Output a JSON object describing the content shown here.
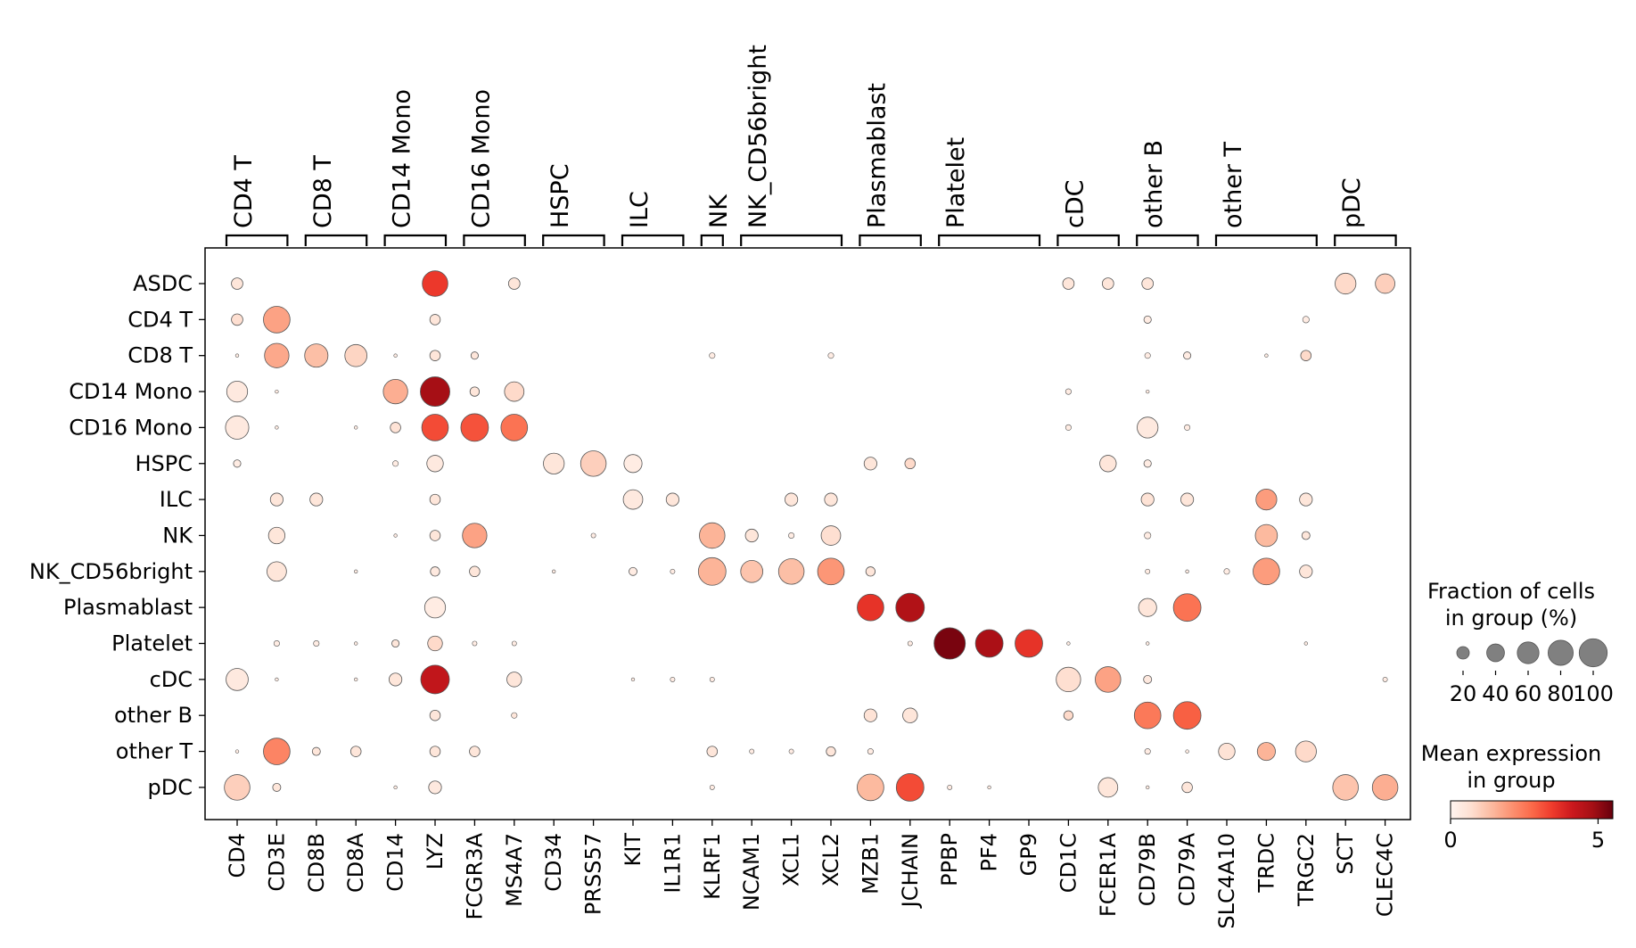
{
  "chart_data": {
    "type": "dotplot",
    "genes": [
      "CD4",
      "CD3E",
      "CD8B",
      "CD8A",
      "CD14",
      "LYZ",
      "FCGR3A",
      "MS4A7",
      "CD34",
      "PRSS57",
      "KIT",
      "IL1R1",
      "KLRF1",
      "NCAM1",
      "XCL1",
      "XCL2",
      "MZB1",
      "JCHAIN",
      "PPBP",
      "PF4",
      "GP9",
      "CD1C",
      "FCER1A",
      "CD79B",
      "CD79A",
      "SLC4A10",
      "TRDC",
      "TRGC2",
      "SCT",
      "CLEC4C"
    ],
    "cell_groups": [
      "ASDC",
      "CD4 T",
      "CD8 T",
      "CD14 Mono",
      "CD16 Mono",
      "HSPC",
      "ILC",
      "NK",
      "NK_CD56bright",
      "Plasmablast",
      "Platelet",
      "cDC",
      "other B",
      "other T",
      "pDC"
    ],
    "gene_group_brackets": [
      {
        "label": "CD4 T",
        "start": 0,
        "end": 1
      },
      {
        "label": "CD8 T",
        "start": 2,
        "end": 3
      },
      {
        "label": "CD14 Mono",
        "start": 4,
        "end": 5
      },
      {
        "label": "CD16 Mono",
        "start": 6,
        "end": 7
      },
      {
        "label": "HSPC",
        "start": 8,
        "end": 9
      },
      {
        "label": "ILC",
        "start": 10,
        "end": 11
      },
      {
        "label": "NK",
        "start": 12,
        "end": 12
      },
      {
        "label": "NK_CD56bright",
        "start": 13,
        "end": 15
      },
      {
        "label": "Plasmablast",
        "start": 16,
        "end": 17
      },
      {
        "label": "Platelet",
        "start": 18,
        "end": 20
      },
      {
        "label": "cDC",
        "start": 21,
        "end": 22
      },
      {
        "label": "other B",
        "start": 23,
        "end": 24
      },
      {
        "label": "other T",
        "start": 25,
        "end": 27
      },
      {
        "label": "pDC",
        "start": 28,
        "end": 29
      }
    ],
    "fraction_pct": [
      [
        12,
        0,
        0,
        0,
        0,
        60,
        0,
        12,
        0,
        0,
        0,
        0,
        0,
        0,
        0,
        0,
        0,
        0,
        0,
        0,
        0,
        12,
        12,
        12,
        0,
        0,
        0,
        0,
        40,
        35
      ],
      [
        12,
        65,
        0,
        0,
        0,
        10,
        0,
        0,
        0,
        0,
        0,
        0,
        0,
        0,
        0,
        0,
        0,
        0,
        0,
        0,
        0,
        0,
        0,
        5,
        0,
        0,
        0,
        4,
        0,
        0
      ],
      [
        1,
        55,
        50,
        45,
        1,
        10,
        5,
        0,
        0,
        0,
        0,
        0,
        3,
        0,
        0,
        3,
        0,
        0,
        0,
        0,
        0,
        0,
        0,
        3,
        5,
        0,
        1,
        10,
        0,
        0
      ],
      [
        40,
        1,
        0,
        0,
        55,
        80,
        8,
        35,
        0,
        0,
        0,
        0,
        0,
        0,
        0,
        0,
        0,
        0,
        0,
        0,
        0,
        3,
        0,
        1,
        0,
        0,
        0,
        0,
        0,
        0
      ],
      [
        50,
        1,
        0,
        1,
        10,
        65,
        70,
        65,
        0,
        0,
        0,
        0,
        0,
        0,
        0,
        0,
        0,
        0,
        0,
        0,
        0,
        3,
        0,
        40,
        3,
        0,
        0,
        0,
        0,
        0
      ],
      [
        5,
        0,
        0,
        0,
        3,
        25,
        0,
        0,
        40,
        60,
        30,
        0,
        0,
        0,
        0,
        0,
        15,
        10,
        0,
        0,
        0,
        0,
        25,
        5,
        0,
        0,
        0,
        0,
        0,
        0
      ],
      [
        0,
        15,
        15,
        0,
        0,
        10,
        0,
        0,
        0,
        0,
        35,
        15,
        0,
        0,
        15,
        15,
        0,
        0,
        0,
        0,
        0,
        0,
        0,
        15,
        15,
        0,
        40,
        15,
        0,
        0
      ],
      [
        0,
        25,
        0,
        0,
        1,
        10,
        55,
        0,
        0,
        2,
        0,
        0,
        60,
        15,
        3,
        35,
        0,
        0,
        0,
        0,
        0,
        0,
        0,
        4,
        0,
        0,
        45,
        6,
        0,
        0
      ],
      [
        0,
        35,
        0,
        1,
        0,
        8,
        10,
        0,
        1,
        0,
        6,
        2,
        70,
        45,
        60,
        65,
        8,
        0,
        0,
        0,
        0,
        0,
        0,
        2,
        1,
        3,
        65,
        15,
        0,
        0
      ],
      [
        0,
        0,
        0,
        0,
        0,
        40,
        0,
        0,
        0,
        0,
        0,
        0,
        0,
        0,
        0,
        0,
        65,
        75,
        0,
        0,
        0,
        0,
        0,
        30,
        70,
        0,
        0,
        0,
        0,
        0
      ],
      [
        0,
        3,
        3,
        1,
        5,
        20,
        2,
        2,
        0,
        0,
        0,
        0,
        0,
        0,
        0,
        0,
        0,
        2,
        90,
        70,
        70,
        1,
        0,
        1,
        0,
        0,
        0,
        1,
        0,
        0
      ],
      [
        45,
        1,
        0,
        1,
        15,
        75,
        0,
        20,
        0,
        0,
        1,
        2,
        2,
        0,
        0,
        0,
        0,
        0,
        0,
        0,
        0,
        55,
        60,
        6,
        0,
        0,
        0,
        0,
        0,
        2
      ],
      [
        0,
        0,
        0,
        0,
        0,
        10,
        0,
        3,
        0,
        0,
        0,
        0,
        0,
        0,
        0,
        0,
        15,
        20,
        0,
        0,
        0,
        8,
        0,
        65,
        70,
        0,
        0,
        0,
        0,
        0
      ],
      [
        1,
        65,
        6,
        10,
        0,
        10,
        10,
        0,
        0,
        0,
        0,
        0,
        10,
        2,
        2,
        8,
        3,
        0,
        0,
        0,
        0,
        0,
        0,
        3,
        1,
        25,
        30,
        40,
        0,
        0
      ],
      [
        60,
        6,
        0,
        0,
        1,
        15,
        0,
        0,
        0,
        0,
        0,
        0,
        2,
        0,
        0,
        0,
        65,
        70,
        2,
        1,
        0,
        0,
        35,
        1,
        10,
        0,
        0,
        0,
        60,
        60
      ]
    ],
    "mean_expression": [
      [
        0.5,
        0,
        0,
        0,
        0,
        3.5,
        0,
        0.5,
        0,
        0,
        0,
        0,
        0,
        0,
        0,
        0,
        0,
        0,
        0,
        0,
        0,
        0.5,
        0.5,
        0.5,
        0,
        0,
        0,
        0,
        0.8,
        1.0
      ],
      [
        0.7,
        1.8,
        0,
        0,
        0,
        0.5,
        0,
        0,
        0,
        0,
        0,
        0,
        0,
        0,
        0,
        0,
        0,
        0,
        0,
        0,
        0,
        0,
        0,
        0.3,
        0,
        0,
        0,
        0.3,
        0,
        0
      ],
      [
        0.3,
        1.7,
        1.3,
        0.9,
        0.3,
        0.5,
        0.5,
        0,
        0,
        0,
        0,
        0,
        0.3,
        0,
        0,
        0.3,
        0,
        0,
        0,
        0,
        0,
        0,
        0,
        0.3,
        0.3,
        0,
        0.3,
        0.8,
        0,
        0
      ],
      [
        0.4,
        0.3,
        0,
        0,
        1.6,
        4.8,
        0.5,
        0.8,
        0,
        0,
        0,
        0,
        0,
        0,
        0,
        0,
        0,
        0,
        0,
        0,
        0,
        0.3,
        0,
        0.3,
        0,
        0,
        0,
        0,
        0,
        0
      ],
      [
        0.4,
        0.3,
        0,
        0.3,
        0.6,
        3.2,
        3.1,
        2.6,
        0,
        0,
        0,
        0,
        0,
        0,
        0,
        0,
        0,
        0,
        0,
        0,
        0,
        0.3,
        0,
        0.4,
        0.3,
        0,
        0,
        0,
        0,
        0
      ],
      [
        0.3,
        0,
        0,
        0,
        0.3,
        0.4,
        0,
        0,
        0.5,
        1.0,
        0.3,
        0,
        0,
        0,
        0,
        0,
        0.5,
        0.8,
        0,
        0,
        0,
        0,
        0.5,
        0.3,
        0,
        0,
        0,
        0,
        0,
        0
      ],
      [
        0,
        0.5,
        0.5,
        0,
        0,
        0.5,
        0,
        0,
        0,
        0,
        0.4,
        0.5,
        0,
        0,
        0.5,
        0.5,
        0,
        0,
        0,
        0,
        0,
        0,
        0,
        0.6,
        0.5,
        0,
        1.9,
        0.5,
        0,
        0
      ],
      [
        0,
        0.5,
        0,
        0,
        0.3,
        0.5,
        1.8,
        0,
        0,
        0.3,
        0,
        0,
        1.5,
        0.5,
        0.3,
        0.7,
        0,
        0,
        0,
        0,
        0,
        0,
        0,
        0.3,
        0,
        0,
        1.4,
        0.5,
        0,
        0
      ],
      [
        0,
        0.5,
        0,
        0.3,
        0,
        0.4,
        0.5,
        0,
        0.3,
        0,
        0.3,
        0.3,
        1.5,
        1.2,
        1.3,
        2.0,
        0.5,
        0,
        0,
        0,
        0,
        0,
        0,
        0.3,
        0.3,
        0.3,
        1.9,
        0.5,
        0,
        0
      ],
      [
        0,
        0,
        0,
        0,
        0,
        0.3,
        0,
        0,
        0,
        0,
        0,
        0,
        0,
        0,
        0,
        0,
        3.6,
        4.6,
        0,
        0,
        0,
        0,
        0,
        0.5,
        2.6,
        0,
        0,
        0,
        0,
        0
      ],
      [
        0,
        0.3,
        0.3,
        0.3,
        0.5,
        0.8,
        0.3,
        0.3,
        0,
        0,
        0,
        0,
        0,
        0,
        0,
        0,
        0,
        0.3,
        5.3,
        4.7,
        3.6,
        0.3,
        0,
        0.3,
        0,
        0,
        0,
        0.3,
        0,
        0
      ],
      [
        0.4,
        0.3,
        0,
        0.3,
        0.5,
        4.3,
        0,
        0.5,
        0,
        0,
        0.3,
        0.3,
        0.3,
        0,
        0,
        0,
        0,
        0,
        0,
        0,
        0,
        0.7,
        1.8,
        0.4,
        0,
        0,
        0,
        0,
        0,
        0.3
      ],
      [
        0,
        0,
        0,
        0,
        0,
        0.5,
        0,
        0.5,
        0,
        0,
        0,
        0,
        0,
        0,
        0,
        0,
        0.6,
        0.5,
        0,
        0,
        0,
        0.8,
        0,
        2.5,
        2.9,
        0,
        0,
        0,
        0,
        0
      ],
      [
        0.3,
        2.3,
        0.5,
        0.5,
        0,
        0.5,
        0.5,
        0,
        0,
        0,
        0,
        0,
        0.5,
        0.3,
        0.3,
        0.5,
        0.3,
        0,
        0,
        0,
        0,
        0,
        0,
        0.3,
        0.3,
        0.6,
        1.5,
        0.8,
        0,
        0
      ],
      [
        1.0,
        0.5,
        0,
        0,
        0.3,
        0.4,
        0,
        0,
        0,
        0,
        0,
        0,
        0.3,
        0,
        0,
        0,
        1.4,
        3.2,
        0.3,
        0.3,
        0,
        0,
        0.5,
        0.3,
        0.5,
        0,
        0,
        0,
        1.2,
        1.6
      ]
    ],
    "size_legend": {
      "title_line1": "Fraction of cells",
      "title_line2": "in group (%)",
      "values": [
        20,
        40,
        60,
        80,
        100
      ],
      "tick_labels": [
        "20",
        "40",
        "60",
        "80",
        "100"
      ]
    },
    "color_legend": {
      "title_line1": "Mean expression",
      "title_line2": "in group",
      "range": [
        0,
        5.5
      ],
      "tick_labels": [
        "0",
        "5"
      ],
      "colormap": "Reds",
      "colors": [
        "#fff5f0",
        "#fee0d2",
        "#fcbba1",
        "#fc9272",
        "#fb6a4a",
        "#ef3b2c",
        "#cb181d",
        "#a50f15",
        "#67000d"
      ]
    },
    "dot_edge_color": "#555555",
    "size_legend_dot_color": "#808080"
  }
}
